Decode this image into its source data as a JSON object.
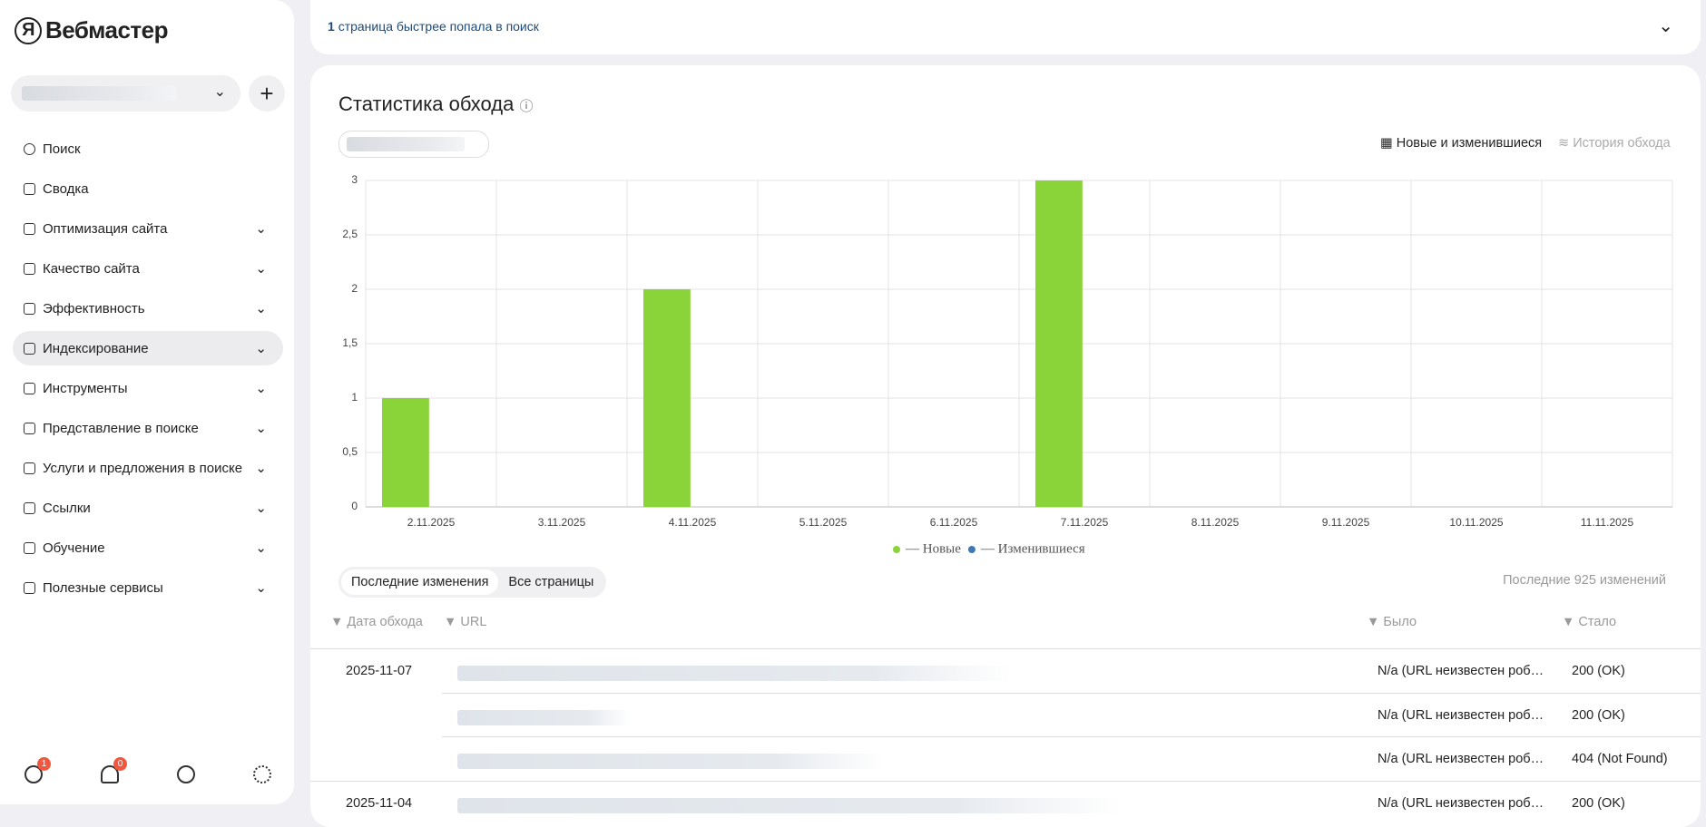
{
  "app": {
    "logo": "Вебмастер",
    "badges": [
      "1",
      "0"
    ]
  },
  "menu": [
    "Поиск",
    "Сводка",
    "Оптимизация сайта",
    "Качество сайта",
    "Эффективность",
    "Индексирование",
    "Инструменты",
    "Представление в поиске",
    "Услуги и предложения в поиске",
    "Ссылки",
    "Обучение",
    "Полезные сервисы"
  ],
  "banner": {
    "count": "1",
    "text": "страница быстрее попала в поиск"
  },
  "card": {
    "title": "Статистика обхода",
    "view_new": "Новые и изменившиеся",
    "view_history": "История обхода",
    "tabs": [
      "Последние изменения",
      "Все страницы"
    ],
    "summary": "Последние 925 изменений",
    "columns": [
      "Дата обхода",
      "URL",
      "Было",
      "Стало"
    ],
    "rows": [
      {
        "date": "2025-11-07",
        "was": "N/a (URL неизвестен роб…",
        "now": "200 (OK)"
      },
      {
        "was": "N/a (URL неизвестен роб…",
        "now": "200 (OK)"
      },
      {
        "was": "N/a (URL неизвестен роб…",
        "now": "404 (Not Found)"
      },
      {
        "date": "2025-11-04",
        "was": "N/a (URL неизвестен роб…",
        "now": "200 (OK)"
      }
    ]
  },
  "chart_data": {
    "type": "bar",
    "categories": [
      "2.11.2025",
      "3.11.2025",
      "4.11.2025",
      "5.11.2025",
      "6.11.2025",
      "7.11.2025",
      "8.11.2025",
      "9.11.2025",
      "10.11.2025",
      "11.11.2025"
    ],
    "series": [
      {
        "name": "— Новые",
        "color": "#8ad43a",
        "values": [
          1,
          0,
          2,
          0,
          0,
          3,
          0,
          0,
          0,
          0
        ]
      },
      {
        "name": "— Изменившиеся",
        "color": "#3f78b5",
        "values": [
          0,
          0,
          0,
          0,
          0,
          0,
          0,
          0,
          0,
          0
        ]
      }
    ],
    "ylim": [
      0,
      3
    ],
    "yticks": [
      0,
      {
        "value": 0.5,
        "label": "0,5"
      },
      1,
      {
        "value": 1.5,
        "label": "1,5"
      },
      2,
      {
        "value": 2.5,
        "label": "2,5"
      },
      3
    ],
    "grid": true
  }
}
